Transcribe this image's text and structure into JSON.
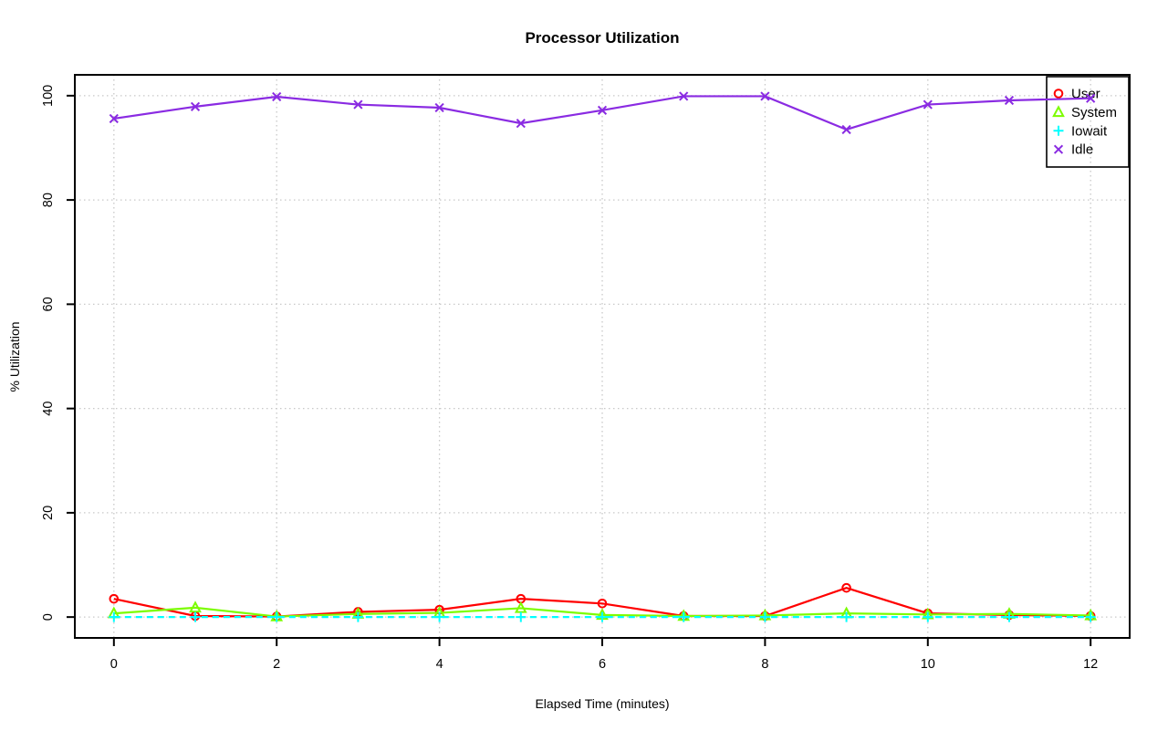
{
  "chart_data": {
    "type": "line",
    "title": "Processor Utilization",
    "xlabel": "Elapsed Time (minutes)",
    "ylabel": "% Utilization",
    "x": [
      0,
      1,
      2,
      3,
      4,
      5,
      6,
      7,
      8,
      9,
      10,
      11,
      12
    ],
    "xticks": [
      0,
      2,
      4,
      6,
      8,
      10,
      12
    ],
    "yticks": [
      0,
      20,
      40,
      60,
      80,
      100
    ],
    "xlim": [
      0,
      12
    ],
    "ylim": [
      0,
      100
    ],
    "grid": "dotted",
    "grid_color": "#c8c8c8",
    "frame_color": "#000000",
    "legend_position": "top-right",
    "series": [
      {
        "name": "User",
        "color": "#ff0000",
        "marker": "circle",
        "line_style": "solid",
        "values": [
          3.5,
          0.2,
          0.1,
          1.0,
          1.4,
          3.5,
          2.6,
          0.2,
          0.2,
          5.6,
          0.7,
          0.4,
          0.2
        ]
      },
      {
        "name": "System",
        "color": "#7cfc00",
        "marker": "triangle",
        "line_style": "solid",
        "values": [
          0.7,
          1.8,
          0.1,
          0.6,
          0.8,
          1.7,
          0.4,
          0.2,
          0.3,
          0.7,
          0.5,
          0.6,
          0.3
        ]
      },
      {
        "name": "Iowait",
        "color": "#00ffff",
        "marker": "plus",
        "line_style": "dashed",
        "values": [
          0.0,
          0.0,
          0.0,
          0.0,
          0.0,
          0.0,
          0.0,
          0.0,
          0.0,
          0.0,
          0.0,
          0.0,
          0.0
        ]
      },
      {
        "name": "Idle",
        "color": "#8a2be2",
        "marker": "x",
        "line_style": "solid",
        "values": [
          95.6,
          97.9,
          99.8,
          98.3,
          97.7,
          94.7,
          97.2,
          99.9,
          99.9,
          93.5,
          98.3,
          99.1,
          99.5
        ]
      }
    ]
  }
}
